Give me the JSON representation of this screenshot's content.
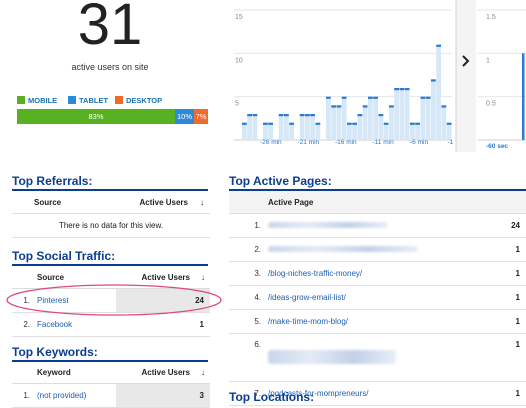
{
  "overview": {
    "count": "31",
    "label": "active users on site"
  },
  "devices": {
    "legend": [
      {
        "name": "MOBILE",
        "color": "#58b120"
      },
      {
        "name": "TABLET",
        "color": "#2d8ad6"
      },
      {
        "name": "DESKTOP",
        "color": "#ef6a2b"
      }
    ],
    "segments": [
      {
        "label": "83%",
        "fraction": 0.83,
        "color": "#58b120"
      },
      {
        "label": "10%",
        "fraction": 0.1,
        "color": "#2d8ad6"
      },
      {
        "label": "7%",
        "fraction": 0.07,
        "color": "#ef6a2b"
      }
    ]
  },
  "chart_minutes": {
    "type": "bar",
    "y_ticks": [
      "15",
      "10",
      "5"
    ],
    "x_labels": [
      "-26 min",
      "-21 min",
      "-16 min",
      "-11 min",
      "-6 min",
      "-1"
    ],
    "ylim": [
      0,
      15
    ]
  },
  "chart_seconds": {
    "type": "bar",
    "y_ticks": [
      "1.5",
      "1",
      "0.5"
    ],
    "x_label": "-60 sec",
    "ylim": [
      0,
      1.5
    ]
  },
  "chart_data": [
    {
      "type": "bar",
      "title": "",
      "ylim": [
        0,
        15
      ],
      "x_ticks": [
        "-26 min",
        "-21 min",
        "-16 min",
        "-11 min",
        "-6 min",
        "-1"
      ],
      "values": [
        2,
        3,
        3,
        0,
        2,
        2,
        0,
        3,
        3,
        2,
        0,
        3,
        3,
        3,
        2,
        0,
        5,
        4,
        4,
        5,
        2,
        2,
        3,
        4,
        5,
        5,
        3,
        2,
        4,
        6,
        6,
        6,
        2,
        2,
        5,
        5,
        7,
        11,
        4,
        2
      ]
    },
    {
      "type": "bar",
      "title": "",
      "ylim": [
        0,
        1.5
      ],
      "values": [
        1
      ]
    }
  ],
  "referrals": {
    "title": "Top Referrals:",
    "headers": [
      "Source",
      "Active Users"
    ],
    "empty_message": "There is no data for this view."
  },
  "social": {
    "title": "Top Social Traffic:",
    "headers": [
      "Source",
      "Active Users"
    ],
    "rows": [
      {
        "idx": "1.",
        "source": "Pinterest",
        "users": "24"
      },
      {
        "idx": "2.",
        "source": "Facebook",
        "users": "1"
      }
    ]
  },
  "keywords": {
    "title": "Top Keywords:",
    "headers": [
      "Keyword",
      "Active Users"
    ],
    "rows": [
      {
        "idx": "1.",
        "keyword": "(not provided)",
        "users": "3"
      }
    ]
  },
  "active_pages": {
    "title": "Top Active Pages:",
    "header": "Active Page",
    "rows": [
      {
        "idx": "1.",
        "page": "",
        "users": "24"
      },
      {
        "idx": "2.",
        "page": "",
        "users": "1"
      },
      {
        "idx": "3.",
        "page": "/blog-niches-traffic-money/",
        "users": "1"
      },
      {
        "idx": "4.",
        "page": "/ideas-grow-email-list/",
        "users": "1"
      },
      {
        "idx": "5.",
        "page": "/make-time-mom-blog/",
        "users": "1"
      },
      {
        "idx": "6.",
        "page": "",
        "users": "1"
      },
      {
        "idx": "7.",
        "page": "/podcasts-for-mompreneurs/",
        "users": "1"
      }
    ]
  },
  "locations": {
    "title": "Top Locations:"
  },
  "sort_icon": "arrow-down-icon",
  "nav_icon": "chevron-right-icon"
}
